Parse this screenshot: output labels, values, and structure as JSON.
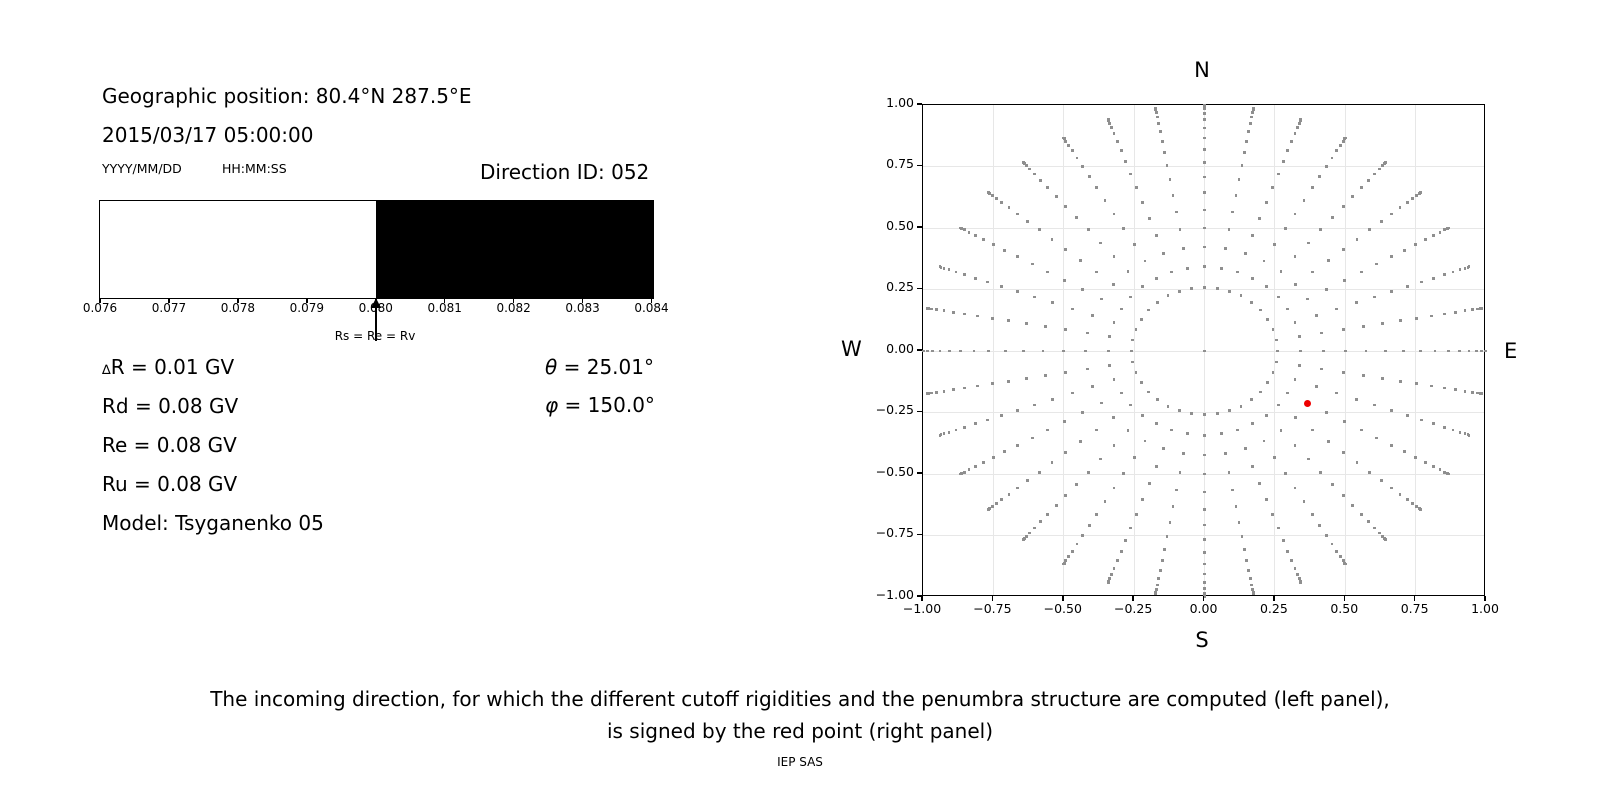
{
  "left_panel": {
    "geographic_position": "Geographic position: 80.4°N 287.5°E",
    "datetime": "2015/03/17 05:00:00",
    "date_format": "YYYY/MM/DD",
    "time_format": "HH:MM:SS",
    "direction_id": "Direction ID: 052",
    "delta_r_symbol": "∆",
    "delta_r_text": "R = 0.01 GV",
    "rd": "Rd = 0.08 GV",
    "re": "Re = 0.08 GV",
    "ru": "Ru = 0.08 GV",
    "model": "Model: Tsyganenko 05",
    "theta_symbol": "θ",
    "theta_text": " = 25.01°",
    "phi_symbol": "φ",
    "phi_text": " = 150.0°"
  },
  "caption": {
    "line1": "The incoming direction, for which the different cutoff rigidities and the penumbra structure are computed (left panel),",
    "line2": "is signed by the red point (right panel)",
    "credit": "IEP SAS"
  },
  "chart_data": [
    {
      "type": "bar",
      "name": "penumbra-structure",
      "xlim": [
        0.076,
        0.084
      ],
      "xtick_labels": [
        "0.076",
        "0.077",
        "0.078",
        "0.079",
        "0.080",
        "0.081",
        "0.082",
        "0.083",
        "0.084"
      ],
      "segments": [
        {
          "x_from": 0.076,
          "x_to": 0.08,
          "fill": "#ffffff",
          "meaning": "allowed"
        },
        {
          "x_from": 0.08,
          "x_to": 0.084,
          "fill": "#000000",
          "meaning": "forbidden"
        }
      ],
      "annotation": {
        "text": "Rs = Re = Rv",
        "x": 0.08
      }
    },
    {
      "type": "scatter",
      "name": "incoming-direction-map",
      "compass_labels": {
        "top": "N",
        "bottom": "S",
        "left": "W",
        "right": "E"
      },
      "xlim": [
        -1,
        1
      ],
      "ylim": [
        -1,
        1
      ],
      "xtick_labels": [
        "−1.00",
        "−0.75",
        "−0.50",
        "−0.25",
        "0.00",
        "0.25",
        "0.50",
        "0.75",
        "1.00"
      ],
      "ytick_labels": [
        "1.00",
        "0.75",
        "0.50",
        "0.25",
        "0.00",
        "−0.25",
        "−0.50",
        "−0.75",
        "−1.00"
      ],
      "grid": true,
      "grid_step": 0.25,
      "direction_grid": {
        "azimuth_start_deg": 0,
        "azimuth_step_deg": 10,
        "azimuth_count": 36,
        "zenith_min_deg": 15,
        "zenith_max_deg": 90,
        "zenith_step_deg": 5,
        "radial_mapping": "sin(zenith)",
        "center_point": true,
        "marker_color": "#8f8f8f"
      },
      "red_point": {
        "x": 0.366,
        "y": -0.212,
        "color": "#ee0000"
      }
    }
  ]
}
